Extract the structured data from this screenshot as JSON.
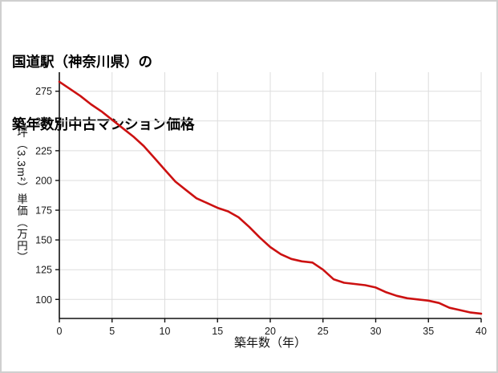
{
  "title": {
    "lines": [
      "国道駅（神奈川県）の",
      "築年数別中古マンション価格"
    ]
  },
  "chart_data": {
    "type": "line",
    "title": "国道駅（神奈川県）の 築年数別中古マンション価格",
    "xlabel": "築年数（年）",
    "ylabel": "坪（3.3m²）単価（万円）",
    "x": [
      0,
      1,
      2,
      3,
      4,
      5,
      6,
      7,
      8,
      9,
      10,
      11,
      12,
      13,
      14,
      15,
      16,
      17,
      18,
      19,
      20,
      21,
      22,
      23,
      24,
      25,
      26,
      27,
      28,
      29,
      30,
      31,
      32,
      33,
      34,
      35,
      36,
      37,
      38,
      39,
      40
    ],
    "values": [
      283,
      277,
      271,
      264,
      258,
      251,
      244,
      237,
      229,
      219,
      209,
      199,
      192,
      185,
      181,
      177,
      174,
      169,
      161,
      152,
      144,
      138,
      134,
      132,
      131,
      125,
      117,
      114,
      113,
      112,
      110,
      106,
      103,
      101,
      100,
      99,
      97,
      93,
      91,
      89,
      88
    ],
    "xlim": [
      0,
      40
    ],
    "ylim": [
      84,
      291
    ],
    "xticks": [
      0,
      5,
      10,
      15,
      20,
      25,
      30,
      35,
      40
    ],
    "yticks": [
      100,
      125,
      150,
      175,
      200,
      225,
      250,
      275
    ],
    "grid": true,
    "grid_color": "#dddddd",
    "axis_color": "#111111",
    "line_color": "#cc1111",
    "background": "#ffffff",
    "legend_position": "none"
  }
}
